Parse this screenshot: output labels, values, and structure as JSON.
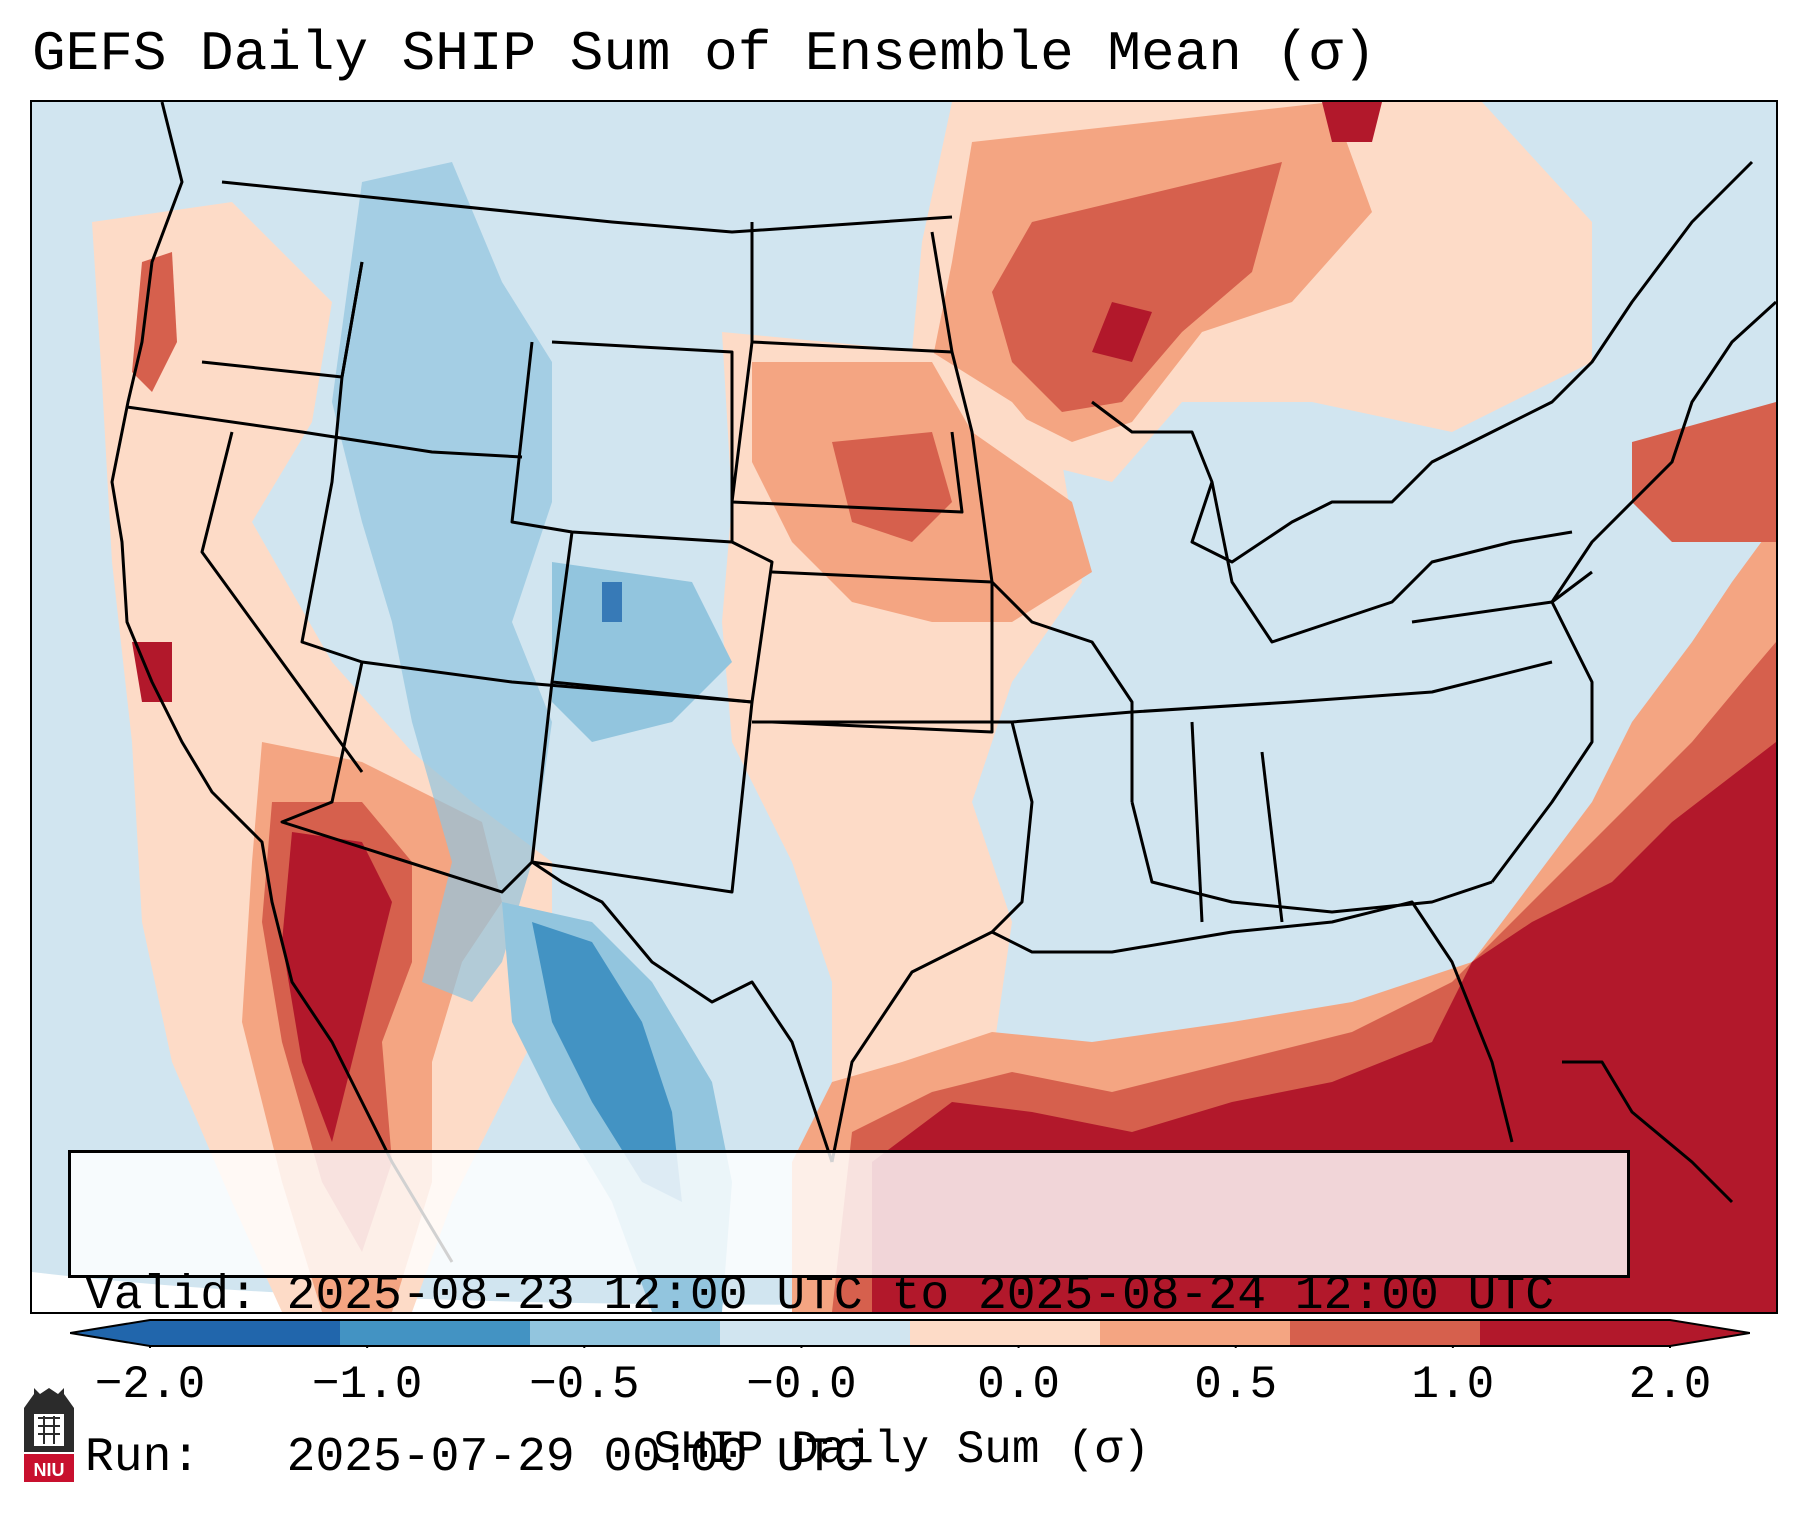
{
  "title": "GEFS Daily SHIP Sum of Ensemble Mean (σ)",
  "info": {
    "valid": "Valid: 2025-08-23 12:00 UTC to 2025-08-24 12:00 UTC",
    "run": "Run:   2025-07-29 00:00 UTC"
  },
  "colorbar": {
    "label": "SHIP Daily Sum (σ)",
    "ticks": [
      "−2.0",
      "−1.0",
      "−0.5",
      "−0.0",
      "0.0",
      "0.5",
      "1.0",
      "2.0"
    ],
    "colors": [
      "#2166ac",
      "#4393c3",
      "#92c5de",
      "#d1e5f0",
      "#fddbc7",
      "#f4a582",
      "#d6604d",
      "#b2182b"
    ],
    "extend_low_color": "#2166ac",
    "extend_high_color": "#b2182b"
  },
  "map": {
    "region": "Contiguous United States",
    "background_color": "#d1e5f0"
  },
  "logo": {
    "text": "NIU"
  }
}
